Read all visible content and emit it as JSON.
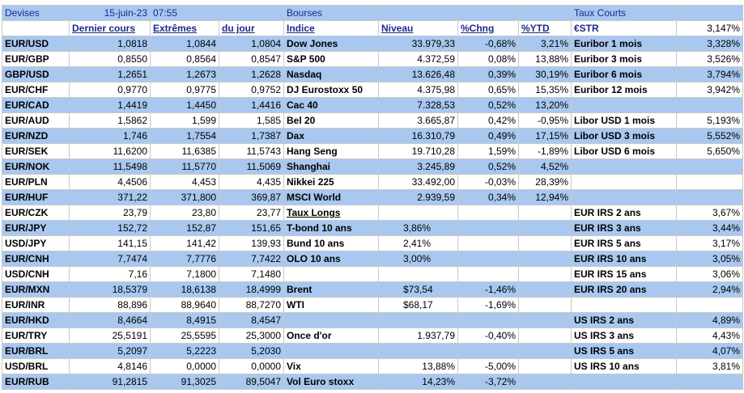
{
  "table": {
    "header": [
      "Devises",
      "15-juin-23",
      "07:55",
      null,
      "Bourses",
      null,
      null,
      null,
      "Taux Courts",
      null
    ],
    "columns": [
      null,
      "Dernier cours",
      "Extrêmes",
      "du jour",
      "Indice",
      "Niveau",
      "%Chng",
      "%YTD",
      "€STR",
      "3,147%"
    ],
    "rows": [
      [
        "EUR/USD",
        "1,0818",
        "1,0844",
        "1,0804",
        "Dow Jones",
        "33.979,33",
        "-0,68%",
        "3,21%",
        "Euribor 1 mois",
        "3,328%"
      ],
      [
        "EUR/GBP",
        "0,8550",
        "0,8564",
        "0,8547",
        "S&P 500",
        "4.372,59",
        "0,08%",
        "13,88%",
        "Euribor 3 mois",
        "3,526%"
      ],
      [
        "GBP/USD",
        "1,2651",
        "1,2673",
        "1,2628",
        "Nasdaq",
        "13.626,48",
        "0,39%",
        "30,19%",
        "Euribor 6 mois",
        "3,794%"
      ],
      [
        "EUR/CHF",
        "0,9770",
        "0,9775",
        "0,9752",
        "DJ Eurostoxx 50",
        "4.375,98",
        "0,65%",
        "15,35%",
        "Euribor 12 mois",
        "3,942%"
      ],
      [
        "EUR/CAD",
        "1,4419",
        "1,4450",
        "1,4416",
        "Cac 40",
        "7.328,53",
        "0,52%",
        "13,20%",
        null,
        null
      ],
      [
        "EUR/AUD",
        "1,5862",
        "1,599",
        "1,585",
        "Bel 20",
        "3.665,87",
        "0,42%",
        "-0,95%",
        "Libor USD 1 mois",
        "5,193%"
      ],
      [
        "EUR/NZD",
        "1,746",
        "1,7554",
        "1,7387",
        "Dax",
        "16.310,79",
        "0,49%",
        "17,15%",
        "Libor USD 3 mois",
        "5,552%"
      ],
      [
        "EUR/SEK",
        "11,6200",
        "11,6385",
        "11,5743",
        "Hang Seng",
        "19.710,28",
        "1,59%",
        "-1,89%",
        "Libor USD 6 mois",
        "5,650%"
      ],
      [
        "EUR/NOK",
        "11,5498",
        "11,5770",
        "11,5069",
        "Shanghai",
        "3.245,89",
        "0,52%",
        "4,52%",
        null,
        null
      ],
      [
        "EUR/PLN",
        "4,4506",
        "4,453",
        "4,435",
        "Nikkei 225",
        "33.492,00",
        "-0,03%",
        "28,39%",
        null,
        null
      ],
      [
        "EUR/HUF",
        "371,22",
        "371,800",
        "369,87",
        "MSCI World",
        "2.939,59",
        "0,34%",
        "12,94%",
        null,
        null
      ],
      [
        "EUR/CZK",
        "23,79",
        "23,80",
        "23,77",
        "Taux Longs",
        null,
        null,
        null,
        "EUR IRS 2 ans",
        "3,67%"
      ],
      [
        "EUR/JPY",
        "152,72",
        "152,87",
        "151,65",
        "T-bond 10 ans",
        "3,86%",
        null,
        null,
        "EUR IRS 3 ans",
        "3,44%"
      ],
      [
        "USD/JPY",
        "141,15",
        "141,42",
        "139,93",
        "Bund 10 ans",
        "2,41%",
        null,
        null,
        "EUR IRS 5 ans",
        "3,17%"
      ],
      [
        "EUR/CNH",
        "7,7474",
        "7,7776",
        "7,7422",
        "OLO 10 ans",
        "3,00%",
        null,
        null,
        "EUR IRS 10 ans",
        "3,05%"
      ],
      [
        "USD/CNH",
        "7,16",
        "7,1800",
        "7,1480",
        null,
        null,
        null,
        null,
        "EUR IRS 15 ans",
        "3,06%"
      ],
      [
        "EUR/MXN",
        "18,5379",
        "18,6138",
        "18,4999",
        "Brent",
        "$73,54",
        "-1,46%",
        null,
        "EUR IRS 20 ans",
        "2,94%"
      ],
      [
        "EUR/INR",
        "88,896",
        "88,9640",
        "88,7270",
        "WTI",
        "$68,17",
        "-1,69%",
        null,
        null,
        null
      ],
      [
        "EUR/HKD",
        "8,4664",
        "8,4915",
        "8,4547",
        null,
        null,
        null,
        null,
        "US IRS 2 ans",
        "4,89%"
      ],
      [
        "EUR/TRY",
        "25,5191",
        "25,5595",
        "25,3000",
        "Once d'or",
        "1.937,79",
        "-0,40%",
        null,
        "US IRS 3 ans",
        "4,43%"
      ],
      [
        "EUR/BRL",
        "5,2097",
        "5,2223",
        "5,2030",
        null,
        null,
        null,
        null,
        "US IRS 5 ans",
        "4,07%"
      ],
      [
        "USD/BRL",
        "4,8146",
        "0,0000",
        "0,0000",
        "Vix",
        "13,88%",
        "-5,00%",
        null,
        "US IRS 10 ans",
        "3,81%"
      ],
      [
        "EUR/RUB",
        "91,2815",
        "91,3025",
        "89,5047",
        "Vol Euro stoxx",
        "14,23%",
        "-3,72%",
        null,
        null,
        null
      ]
    ]
  }
}
